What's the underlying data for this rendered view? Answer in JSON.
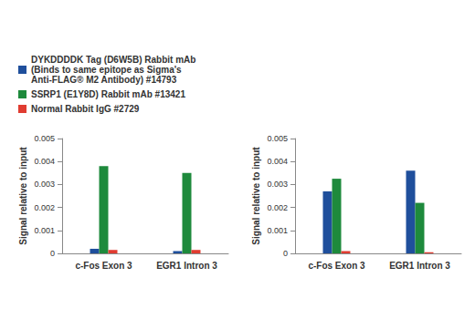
{
  "chart_data": [
    {
      "type": "bar",
      "categories": [
        "c-Fos Exon 3",
        "EGR1 Intron 3"
      ],
      "y_label": "Signal relative to input",
      "ylim": [
        0,
        0.005
      ],
      "yticks": [
        0,
        0.001,
        0.002,
        0.003,
        0.004,
        0.005
      ],
      "legend": "top left",
      "series": [
        {
          "name": "DYKDDDDK Tag (D6W5B) Rabbit mAb\n(Binds to same epitope as Sigma's\nAnti-FLAG® M2 Antibody) #14793",
          "color": "#1f4f9c",
          "values": [
            0.0002,
            0.0001
          ]
        },
        {
          "name": "SSRP1 (E1Y8D) Rabbit mAb #13421",
          "color": "#1e8a3c",
          "values": [
            0.0038,
            0.0035
          ]
        },
        {
          "name": "Normal Rabbit IgG #2729",
          "color": "#e03c31",
          "values": [
            0.00015,
            0.00015
          ]
        }
      ]
    },
    {
      "type": "bar",
      "categories": [
        "c-Fos Exon 3",
        "EGR1 Intron 3"
      ],
      "y_label": "Signal relative to input",
      "ylim": [
        0,
        0.005
      ],
      "yticks": [
        0,
        0.001,
        0.002,
        0.003,
        0.004,
        0.005
      ],
      "series": [
        {
          "name": "DYKDDDDK Tag (D6W5B) Rabbit mAb\n(Binds to same epitope as Sigma's\nAnti-FLAG® M2 Antibody) #14793",
          "color": "#1f4f9c",
          "values": [
            0.0027,
            0.0036
          ]
        },
        {
          "name": "SSRP1 (E1Y8D) Rabbit mAb #13421",
          "color": "#1e8a3c",
          "values": [
            0.00325,
            0.0022
          ]
        },
        {
          "name": "Normal Rabbit IgG #2729",
          "color": "#e03c31",
          "values": [
            0.0001,
            5e-05
          ]
        }
      ]
    }
  ]
}
